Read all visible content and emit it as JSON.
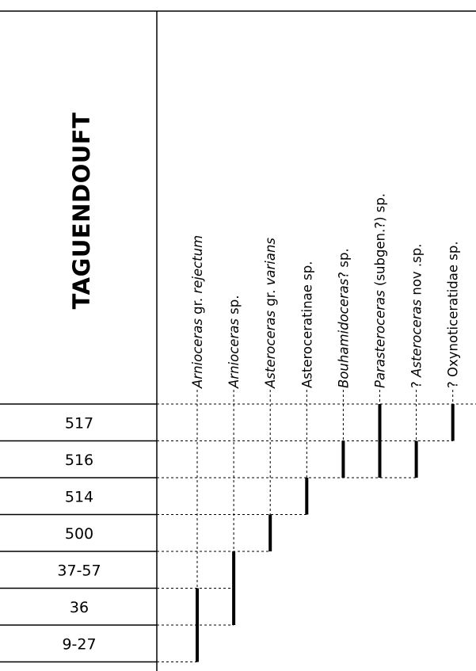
{
  "section_title": "TAGUENDOUFT",
  "samples": [
    "517",
    "516",
    "514",
    "500",
    "37-57",
    "36",
    "9-27"
  ],
  "taxa": [
    {
      "prefix": "",
      "italic": "Arnioceras",
      "suffix": " gr. ",
      "italic2": "rejectum",
      "suffix2": "",
      "range": [
        "36",
        "9-27"
      ]
    },
    {
      "prefix": "",
      "italic": "Arnioceras",
      "suffix": " sp.",
      "italic2": "",
      "suffix2": "",
      "range": [
        "37-57",
        "36"
      ]
    },
    {
      "prefix": "",
      "italic": "Asteroceras",
      "suffix": " gr. ",
      "italic2": "varians",
      "suffix2": "",
      "range": [
        "500",
        "500"
      ]
    },
    {
      "prefix": "Asteroceratinae sp.",
      "italic": "",
      "suffix": "",
      "italic2": "",
      "suffix2": "",
      "range": [
        "514",
        "514"
      ]
    },
    {
      "prefix": "",
      "italic": "Bouhamidoceras",
      "suffix": "? sp.",
      "italic2": "",
      "suffix2": "",
      "range": [
        "516",
        "516"
      ]
    },
    {
      "prefix": "",
      "italic": "Parasteroceras",
      "suffix": " (subgen.?) sp.",
      "italic2": "",
      "suffix2": "",
      "range": [
        "517",
        "516"
      ]
    },
    {
      "prefix": "? ",
      "italic": "Asteroceras",
      "suffix": " nov .sp.",
      "italic2": "",
      "suffix2": "",
      "range": [
        "516",
        "516"
      ]
    },
    {
      "prefix": "? Oxynoticeratidae sp.",
      "italic": "",
      "suffix": "",
      "italic2": "",
      "suffix2": "",
      "range": [
        "517",
        "517"
      ]
    }
  ]
}
